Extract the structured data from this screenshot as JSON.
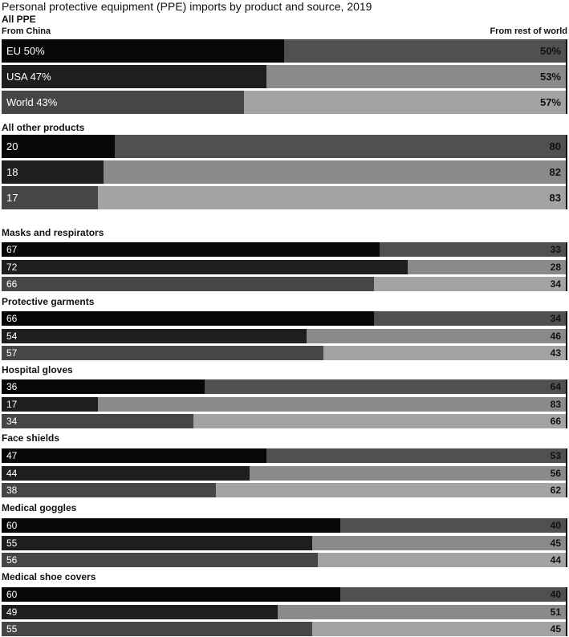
{
  "title": "Personal protective equipment (PPE) imports by product and source, 2019",
  "legend": {
    "left": "From China",
    "right": "From rest of world"
  },
  "colors": {
    "china": [
      "#070707",
      "#1e1e1e",
      "#464646"
    ],
    "rest": [
      "#505050",
      "#8a8a8a",
      "#a3a3a3"
    ]
  },
  "chart_data": {
    "type": "bar",
    "stacked": true,
    "orientation": "horizontal",
    "unit": "%",
    "xlim": [
      0,
      100
    ],
    "series": [
      {
        "name": "From China"
      },
      {
        "name": "From rest of world"
      }
    ],
    "groups": [
      {
        "name": "All PPE",
        "rows": [
          {
            "china": 50,
            "rest": 50,
            "china_label": "EU 50%",
            "rest_label": "50%"
          },
          {
            "china": 47,
            "rest": 53,
            "china_label": "USA  47%",
            "rest_label": "53%"
          },
          {
            "china": 43,
            "rest": 57,
            "china_label": "World 43%",
            "rest_label": "57%"
          }
        ]
      },
      {
        "name": "All other products",
        "rows": [
          {
            "china": 20,
            "rest": 80,
            "china_label": "20",
            "rest_label": "80"
          },
          {
            "china": 18,
            "rest": 82,
            "china_label": "18",
            "rest_label": "82"
          },
          {
            "china": 17,
            "rest": 83,
            "china_label": "17",
            "rest_label": "83"
          }
        ]
      },
      {
        "name": "Masks and respirators",
        "rows": [
          {
            "china": 67,
            "rest": 33,
            "china_label": "67",
            "rest_label": "33"
          },
          {
            "china": 72,
            "rest": 28,
            "china_label": "72",
            "rest_label": "28"
          },
          {
            "china": 66,
            "rest": 34,
            "china_label": "66",
            "rest_label": "34"
          }
        ]
      },
      {
        "name": "Protective garments",
        "rows": [
          {
            "china": 66,
            "rest": 34,
            "china_label": "66",
            "rest_label": "34"
          },
          {
            "china": 54,
            "rest": 46,
            "china_label": "54",
            "rest_label": "46"
          },
          {
            "china": 57,
            "rest": 43,
            "china_label": "57",
            "rest_label": "43"
          }
        ]
      },
      {
        "name": "Hospital gloves",
        "rows": [
          {
            "china": 36,
            "rest": 64,
            "china_label": "36",
            "rest_label": "64"
          },
          {
            "china": 17,
            "rest": 83,
            "china_label": "17",
            "rest_label": "83"
          },
          {
            "china": 34,
            "rest": 66,
            "china_label": "34",
            "rest_label": "66"
          }
        ]
      },
      {
        "name": "Face shields",
        "rows": [
          {
            "china": 47,
            "rest": 53,
            "china_label": "47",
            "rest_label": "53"
          },
          {
            "china": 44,
            "rest": 56,
            "china_label": "44",
            "rest_label": "56"
          },
          {
            "china": 38,
            "rest": 62,
            "china_label": "38",
            "rest_label": "62"
          }
        ]
      },
      {
        "name": "Medical goggles",
        "rows": [
          {
            "china": 60,
            "rest": 40,
            "china_label": "60",
            "rest_label": "40"
          },
          {
            "china": 55,
            "rest": 45,
            "china_label": "55",
            "rest_label": "45"
          },
          {
            "china": 56,
            "rest": 44,
            "china_label": "56",
            "rest_label": "44"
          }
        ]
      },
      {
        "name": "Medical shoe covers",
        "rows": [
          {
            "china": 60,
            "rest": 40,
            "china_label": "60",
            "rest_label": "40"
          },
          {
            "china": 49,
            "rest": 51,
            "china_label": "49",
            "rest_label": "51"
          },
          {
            "china": 55,
            "rest": 45,
            "china_label": "55",
            "rest_label": "45"
          }
        ]
      }
    ]
  }
}
